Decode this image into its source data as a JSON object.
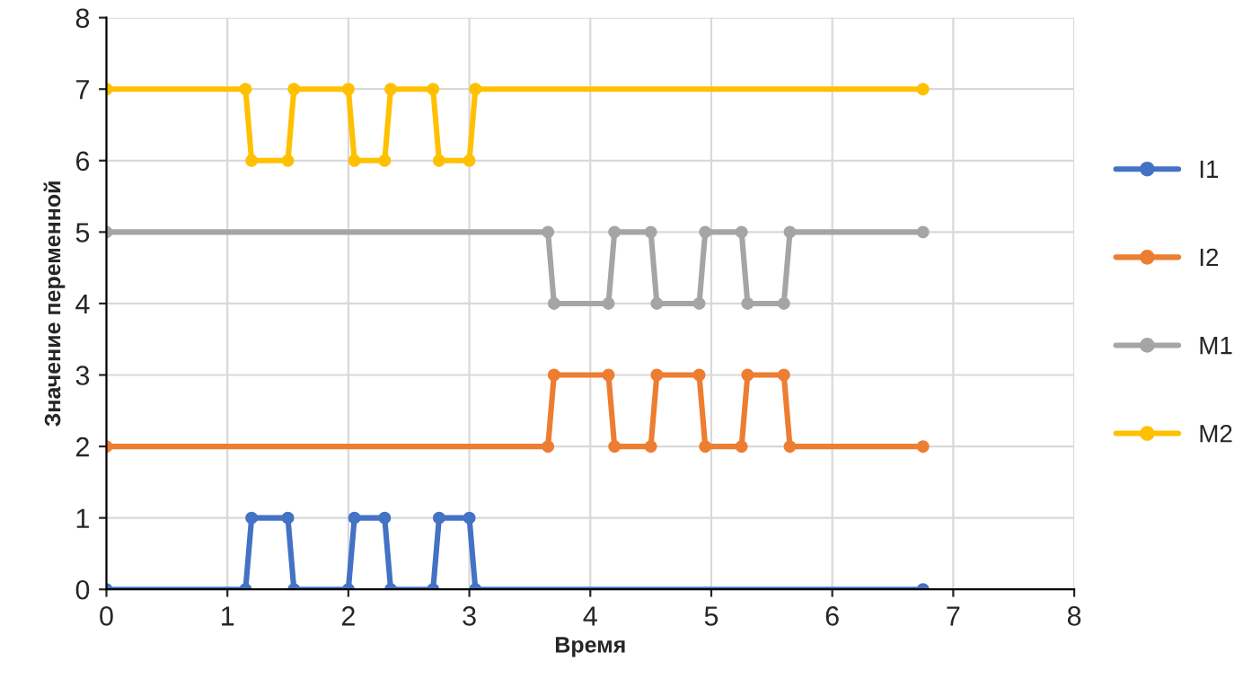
{
  "chart_data": {
    "type": "line",
    "xlabel": "Время",
    "ylabel": "Значение переменной",
    "xlim": [
      0,
      8
    ],
    "ylim": [
      0,
      8
    ],
    "xticks": [
      0,
      1,
      2,
      3,
      4,
      5,
      6,
      7,
      8
    ],
    "yticks": [
      0,
      1,
      2,
      3,
      4,
      5,
      6,
      7,
      8
    ],
    "grid": true,
    "legend": "right",
    "marker": "circle",
    "line_style": "solid",
    "series": [
      {
        "name": "I1",
        "color": "#4472c4",
        "x": [
          0,
          1.15,
          1.2,
          1.5,
          1.55,
          2.0,
          2.05,
          2.3,
          2.35,
          2.7,
          2.75,
          3.0,
          3.05,
          6.75
        ],
        "values": [
          0,
          0,
          1,
          1,
          0,
          0,
          1,
          1,
          0,
          0,
          1,
          1,
          0,
          0
        ]
      },
      {
        "name": "I2",
        "color": "#ed7d31",
        "x": [
          0,
          3.65,
          3.7,
          4.15,
          4.2,
          4.5,
          4.55,
          4.9,
          4.95,
          5.25,
          5.3,
          5.6,
          5.65,
          6.75
        ],
        "values": [
          2,
          2,
          3,
          3,
          2,
          2,
          3,
          3,
          2,
          2,
          3,
          3,
          2,
          2
        ]
      },
      {
        "name": "M1",
        "color": "#a5a5a5",
        "x": [
          0,
          3.65,
          3.7,
          4.15,
          4.2,
          4.5,
          4.55,
          4.9,
          4.95,
          5.25,
          5.3,
          5.6,
          5.65,
          6.75
        ],
        "values": [
          5,
          5,
          4,
          4,
          5,
          5,
          4,
          4,
          5,
          5,
          4,
          4,
          5,
          5
        ]
      },
      {
        "name": "M2",
        "color": "#ffc000",
        "x": [
          0,
          1.15,
          1.2,
          1.5,
          1.55,
          2.0,
          2.05,
          2.3,
          2.35,
          2.7,
          2.75,
          3.0,
          3.05,
          6.75
        ],
        "values": [
          7,
          7,
          6,
          6,
          7,
          7,
          6,
          6,
          7,
          7,
          6,
          6,
          7,
          7
        ]
      }
    ]
  }
}
